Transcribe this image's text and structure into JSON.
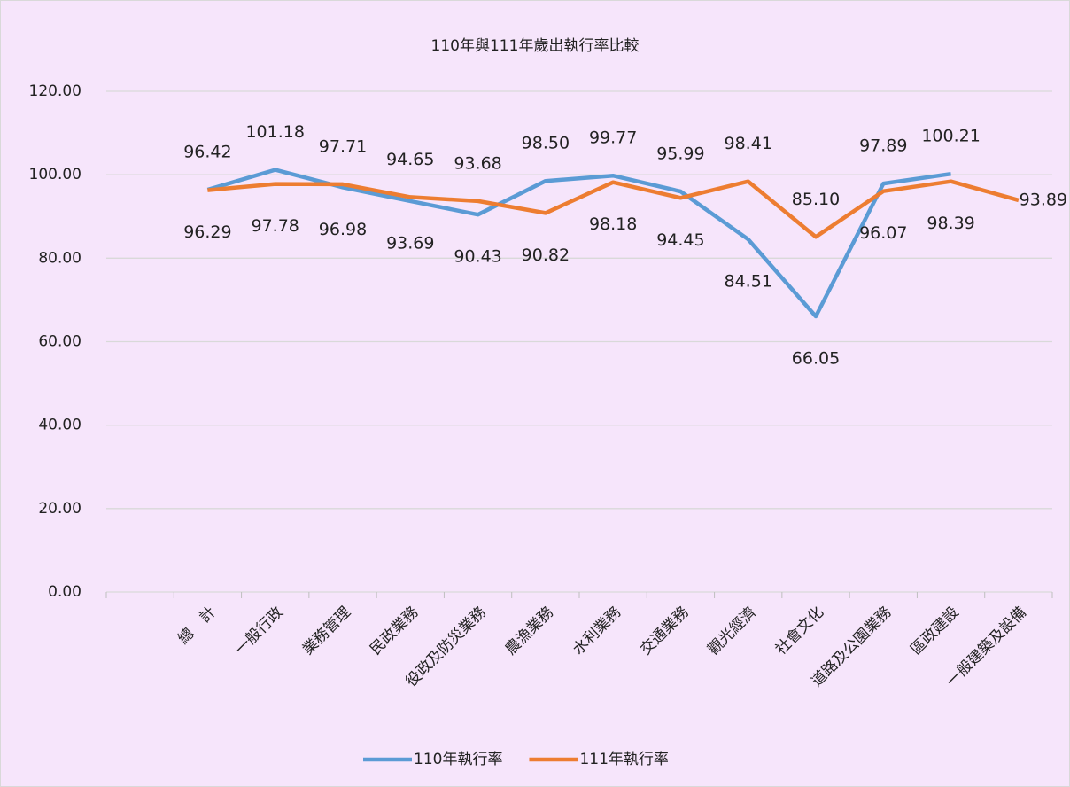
{
  "chart_data": {
    "type": "line",
    "title": "110年與111年歲出執行率比較",
    "categories": [
      null,
      "總　計",
      "一般行政",
      "業務管理",
      "民政業務",
      "役政及防災業務",
      "農漁業務",
      "水利業務",
      "交通業務",
      "觀光經濟",
      "社會文化",
      "道路及公園業務",
      "區政建設",
      "一般建築及設備"
    ],
    "series": [
      {
        "name": "110年執行率",
        "color": "#5b9bd5",
        "values": [
          null,
          96.42,
          101.18,
          96.98,
          93.69,
          90.43,
          98.5,
          99.77,
          95.99,
          84.51,
          66.05,
          97.89,
          100.21,
          null
        ],
        "value_labels": [
          null,
          "96.42",
          "101.18",
          "96.98",
          "93.69",
          "90.43",
          "98.50",
          "99.77",
          "95.99",
          "84.51",
          "66.05",
          "97.89",
          "100.21",
          null
        ]
      },
      {
        "name": "111年執行率",
        "color": "#ed7d31",
        "values": [
          null,
          96.29,
          97.78,
          97.71,
          94.65,
          93.68,
          90.82,
          98.18,
          94.45,
          98.41,
          85.1,
          96.07,
          98.39,
          93.89
        ],
        "value_labels": [
          null,
          "96.29",
          "97.78",
          "97.71",
          "94.65",
          "93.68",
          "90.82",
          "98.18",
          "94.45",
          "98.41",
          "85.10",
          "96.07",
          "98.39",
          "93.89"
        ]
      }
    ],
    "ylim": [
      0,
      120
    ],
    "yticks": [
      {
        "value": 0,
        "label": "0.00"
      },
      {
        "value": 20,
        "label": "20.00"
      },
      {
        "value": 40,
        "label": "40.00"
      },
      {
        "value": 60,
        "label": "60.00"
      },
      {
        "value": 80,
        "label": "80.00"
      },
      {
        "value": 100,
        "label": "100.00"
      },
      {
        "value": 120,
        "label": "120.00"
      }
    ],
    "grid": true,
    "legend": "bottom"
  }
}
